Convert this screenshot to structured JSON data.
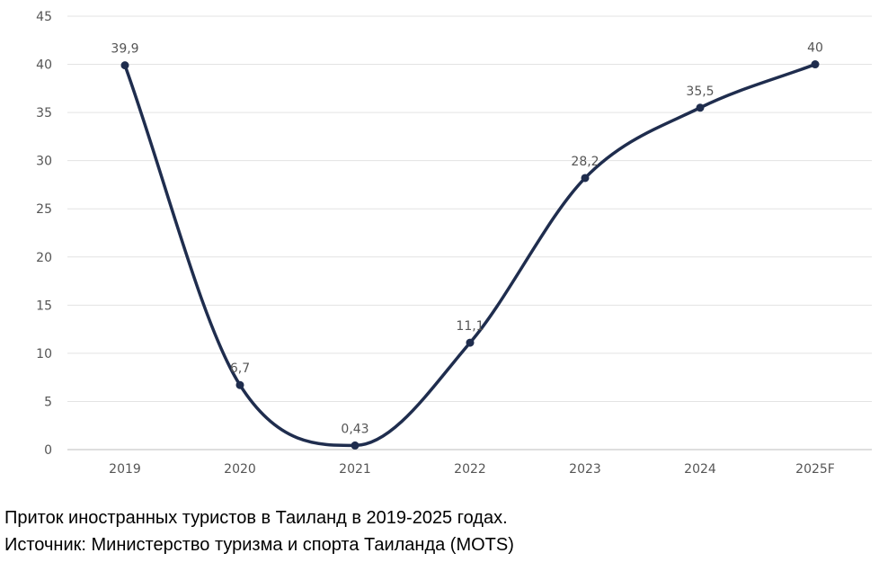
{
  "chart_data": {
    "type": "line",
    "categories": [
      "2019",
      "2020",
      "2021",
      "2022",
      "2023",
      "2024",
      "2025F"
    ],
    "series": [
      {
        "values": [
          39.9,
          6.7,
          0.43,
          11.1,
          28.2,
          35.5,
          40
        ],
        "labels": [
          "39,9",
          "6,7",
          "0,43",
          "11,1",
          "28,2",
          "35,5",
          "40"
        ]
      }
    ],
    "ylim": [
      0,
      45
    ],
    "yticks": [
      "0",
      "5",
      "10",
      "15",
      "20",
      "25",
      "30",
      "35",
      "40",
      "45"
    ],
    "grid": true,
    "line_color": "#1f2d4e",
    "title": "",
    "xlabel": "",
    "ylabel": ""
  },
  "caption": {
    "line1": "Приток иностранных туристов в Таиланд в 2019-2025 годах.",
    "line2": "Источник: Министерство туризма и спорта Таиланда (MOTS)"
  }
}
